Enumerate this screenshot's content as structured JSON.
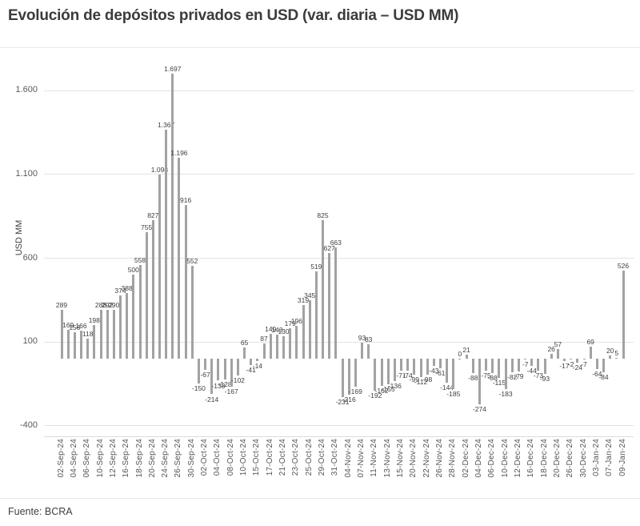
{
  "page": {
    "title": "Evolución de depósitos privados en USD (var. diaria – USD MM)",
    "source": "Fuente: BCRA"
  },
  "chart_data": {
    "type": "bar",
    "title": "Evolución de depósitos privados en USD (var. diaria – USD MM)",
    "ylabel": "USD MM",
    "xlabel": "",
    "legend": "none",
    "grid": "horizontal",
    "ylim": [
      -465,
      1780
    ],
    "bar_color": "#a2a2a2",
    "grid_color": "#e3e3e3",
    "value_label_color": "#3f3f3f",
    "axis_text_color": "#5a5a5a",
    "y_ticks": [
      {
        "value": 1600,
        "label": "1.600"
      },
      {
        "value": 1100,
        "label": "1.100"
      },
      {
        "value": 600,
        "label": "600"
      },
      {
        "value": 100,
        "label": "100"
      },
      {
        "value": -400,
        "label": "-400"
      }
    ],
    "x_label_every": 2,
    "x_tick_labels": [
      "02-Sep-24",
      "04-Sep-24",
      "06-Sep-24",
      "10-Sep-24",
      "12-Sep-24",
      "16-Sep-24",
      "18-Sep-24",
      "20-Sep-24",
      "24-Sep-24",
      "26-Sep-24",
      "30-Sep-24",
      "02-Oct-24",
      "04-Oct-24",
      "08-Oct-24",
      "10-Oct-24",
      "15-Oct-24",
      "17-Oct-24",
      "21-Oct-24",
      "23-Oct-24",
      "25-Oct-24",
      "29-Oct-24",
      "31-Oct-24",
      "04-Nov-24",
      "07-Nov-24",
      "11-Nov-24",
      "13-Nov-24",
      "15-Nov-24",
      "20-Nov-24",
      "22-Nov-24",
      "26-Nov-24",
      "28-Nov-24",
      "02-Dec-24",
      "04-Dec-24",
      "06-Dec-24",
      "10-Dec-24",
      "12-Dec-24",
      "16-Dec-24",
      "18-Dec-24",
      "20-Dec-24",
      "26-Dec-24",
      "30-Dec-24",
      "03-Jan-24",
      "07-Jan-24",
      "09-Jan-24"
    ],
    "values": [
      289,
      169,
      156,
      166,
      118,
      198,
      288,
      292,
      290,
      374,
      388,
      500,
      558,
      755,
      827,
      1098,
      1367,
      1697,
      1196,
      916,
      552,
      -150,
      -67,
      -214,
      -133,
      -128,
      -167,
      -102,
      65,
      -41,
      -14,
      87,
      149,
      143,
      130,
      179,
      196,
      319,
      345,
      519,
      825,
      627,
      663,
      -231,
      -216,
      -169,
      93,
      83,
      -192,
      -162,
      -155,
      -136,
      -71,
      -74,
      -99,
      -112,
      -98,
      -43,
      -61,
      -144,
      -185,
      0,
      21,
      -88,
      -274,
      -75,
      -88,
      -115,
      -183,
      -82,
      -79,
      -7,
      -44,
      -73,
      -93,
      26,
      57,
      -17,
      -2,
      -24,
      -7,
      69,
      -64,
      -84,
      20,
      5,
      526
    ]
  }
}
